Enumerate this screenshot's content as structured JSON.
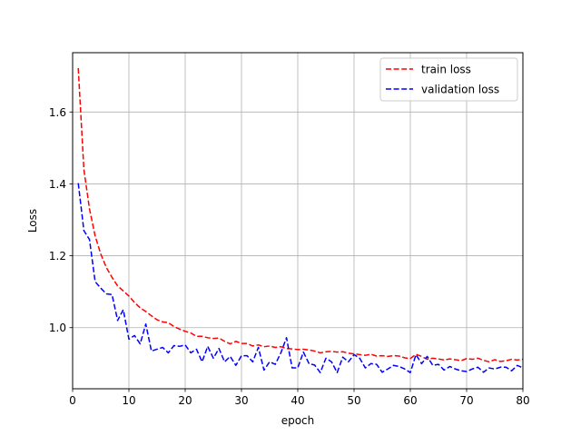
{
  "chart_data": {
    "type": "line",
    "xlabel": "epoch",
    "ylabel": "Loss",
    "xlim": [
      0,
      80
    ],
    "ylim": [
      0.83,
      1.765
    ],
    "xticks": [
      0,
      10,
      20,
      30,
      40,
      50,
      60,
      70,
      80
    ],
    "yticks": [
      1.0,
      1.2,
      1.4,
      1.6
    ],
    "ytick_labels": [
      "1.0",
      "1.2",
      "1.4",
      "1.6"
    ],
    "grid": true,
    "legend_position": "top-right",
    "x": [
      1,
      2,
      3,
      4,
      5,
      6,
      7,
      8,
      9,
      10,
      11,
      12,
      13,
      14,
      15,
      16,
      17,
      18,
      19,
      20,
      21,
      22,
      23,
      24,
      25,
      26,
      27,
      28,
      29,
      30,
      31,
      32,
      33,
      34,
      35,
      36,
      37,
      38,
      39,
      40,
      41,
      42,
      43,
      44,
      45,
      46,
      47,
      48,
      49,
      50,
      51,
      52,
      53,
      54,
      55,
      56,
      57,
      58,
      59,
      60,
      61,
      62,
      63,
      64,
      65,
      66,
      67,
      68,
      69,
      70,
      71,
      72,
      73,
      74,
      75,
      76,
      77,
      78,
      79,
      80
    ],
    "series": [
      {
        "name": "train loss",
        "color": "#ff0000",
        "style": "dashed",
        "values": [
          1.722,
          1.44,
          1.33,
          1.255,
          1.205,
          1.167,
          1.14,
          1.116,
          1.102,
          1.088,
          1.07,
          1.055,
          1.045,
          1.033,
          1.022,
          1.016,
          1.014,
          1.003,
          0.996,
          0.99,
          0.985,
          0.976,
          0.976,
          0.972,
          0.97,
          0.971,
          0.962,
          0.955,
          0.962,
          0.956,
          0.956,
          0.949,
          0.952,
          0.947,
          0.949,
          0.945,
          0.947,
          0.942,
          0.941,
          0.939,
          0.94,
          0.938,
          0.935,
          0.93,
          0.933,
          0.934,
          0.932,
          0.933,
          0.929,
          0.927,
          0.925,
          0.923,
          0.926,
          0.921,
          0.922,
          0.92,
          0.922,
          0.921,
          0.916,
          0.914,
          0.926,
          0.92,
          0.912,
          0.915,
          0.913,
          0.91,
          0.913,
          0.911,
          0.908,
          0.914,
          0.912,
          0.915,
          0.909,
          0.905,
          0.911,
          0.906,
          0.908,
          0.912,
          0.91,
          0.912
        ]
      },
      {
        "name": "validation loss",
        "color": "#0000ff",
        "style": "dashed",
        "values": [
          1.402,
          1.27,
          1.245,
          1.128,
          1.11,
          1.094,
          1.092,
          1.02,
          1.05,
          0.968,
          0.978,
          0.955,
          1.01,
          0.935,
          0.94,
          0.945,
          0.93,
          0.95,
          0.948,
          0.952,
          0.93,
          0.94,
          0.905,
          0.948,
          0.915,
          0.942,
          0.905,
          0.92,
          0.895,
          0.922,
          0.922,
          0.905,
          0.945,
          0.882,
          0.905,
          0.898,
          0.93,
          0.972,
          0.888,
          0.888,
          0.932,
          0.9,
          0.896,
          0.875,
          0.915,
          0.905,
          0.875,
          0.918,
          0.905,
          0.925,
          0.915,
          0.888,
          0.9,
          0.898,
          0.876,
          0.885,
          0.895,
          0.892,
          0.885,
          0.875,
          0.925,
          0.9,
          0.92,
          0.895,
          0.898,
          0.882,
          0.892,
          0.885,
          0.88,
          0.878,
          0.885,
          0.89,
          0.876,
          0.888,
          0.885,
          0.89,
          0.89,
          0.88,
          0.895,
          0.888
        ]
      }
    ]
  }
}
